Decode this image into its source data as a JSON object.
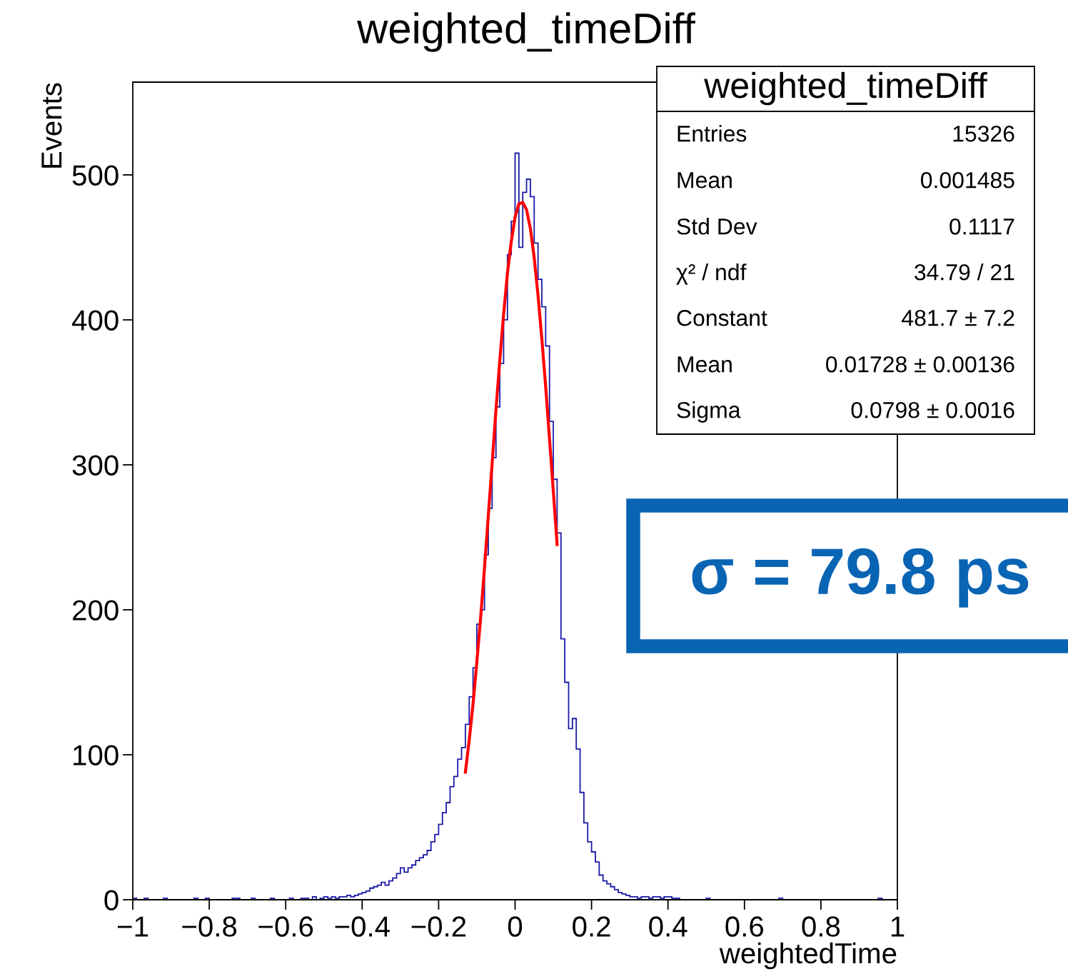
{
  "chart_data": {
    "type": "histogram",
    "title": "weighted_timeDiff",
    "xlabel": "weightedTime",
    "ylabel": "Events",
    "bins": [
      -1.0,
      -0.99,
      -0.98,
      -0.97,
      -0.96,
      -0.95,
      -0.94,
      -0.93,
      -0.92,
      -0.91,
      -0.9,
      -0.89,
      -0.88,
      -0.87,
      -0.86,
      -0.85,
      -0.84,
      -0.83,
      -0.82,
      -0.81,
      -0.8,
      -0.79,
      -0.78,
      -0.77,
      -0.76,
      -0.75,
      -0.74,
      -0.73,
      -0.72,
      -0.71,
      -0.7,
      -0.69,
      -0.68,
      -0.67,
      -0.66,
      -0.65,
      -0.64,
      -0.63,
      -0.62,
      -0.61,
      -0.6,
      -0.59,
      -0.58,
      -0.57,
      -0.56,
      -0.55,
      -0.54,
      -0.53,
      -0.52,
      -0.51,
      -0.5,
      -0.49,
      -0.48,
      -0.47,
      -0.46,
      -0.45,
      -0.44,
      -0.43,
      -0.42,
      -0.41,
      -0.4,
      -0.39,
      -0.38,
      -0.37,
      -0.36,
      -0.35,
      -0.34,
      -0.33,
      -0.32,
      -0.31,
      -0.3,
      -0.29,
      -0.28,
      -0.27,
      -0.26,
      -0.25,
      -0.24,
      -0.23,
      -0.22,
      -0.21,
      -0.2,
      -0.19,
      -0.18,
      -0.17,
      -0.16,
      -0.15,
      -0.14,
      -0.13,
      -0.12,
      -0.11,
      -0.1,
      -0.09,
      -0.08,
      -0.07,
      -0.06,
      -0.05,
      -0.04,
      -0.03,
      -0.02,
      -0.01,
      0.0,
      0.01,
      0.02,
      0.03,
      0.04,
      0.05,
      0.06,
      0.07,
      0.08,
      0.09,
      0.1,
      0.11,
      0.12,
      0.13,
      0.14,
      0.15,
      0.16,
      0.17,
      0.18,
      0.19,
      0.2,
      0.21,
      0.22,
      0.23,
      0.24,
      0.25,
      0.26,
      0.27,
      0.28,
      0.29,
      0.3,
      0.31,
      0.32,
      0.33,
      0.34,
      0.35,
      0.36,
      0.37,
      0.38,
      0.39,
      0.4,
      0.41,
      0.42,
      0.43,
      0.44,
      0.45,
      0.46,
      0.47,
      0.48,
      0.49,
      0.5,
      0.51,
      0.52,
      0.53,
      0.54,
      0.55,
      0.56,
      0.57,
      0.58,
      0.59,
      0.6,
      0.61,
      0.62,
      0.63,
      0.64,
      0.65,
      0.66,
      0.67,
      0.68,
      0.69,
      0.7,
      0.71,
      0.72,
      0.73,
      0.74,
      0.75,
      0.76,
      0.77,
      0.78,
      0.79,
      0.8,
      0.81,
      0.82,
      0.83,
      0.84,
      0.85,
      0.86,
      0.87,
      0.88,
      0.89,
      0.9,
      0.91,
      0.92,
      0.93,
      0.94,
      0.95,
      0.96,
      0.97,
      0.98,
      0.99,
      1.0
    ],
    "values": [
      1,
      0,
      0,
      1,
      0,
      0,
      0,
      0,
      1,
      0,
      0,
      0,
      0,
      0,
      0,
      0,
      1,
      0,
      0,
      1,
      0,
      0,
      0,
      0,
      0,
      0,
      1,
      1,
      0,
      0,
      0,
      1,
      0,
      0,
      0,
      0,
      1,
      0,
      0,
      0,
      0,
      1,
      0,
      0,
      1,
      1,
      0,
      2,
      0,
      1,
      2,
      1,
      2,
      1,
      2,
      2,
      3,
      2,
      3,
      4,
      5,
      6,
      8,
      9,
      10,
      12,
      10,
      13,
      15,
      18,
      22,
      19,
      22,
      24,
      27,
      29,
      31,
      34,
      40,
      45,
      52,
      60,
      67,
      78,
      85,
      97,
      105,
      121,
      140,
      160,
      190,
      200,
      238,
      270,
      305,
      340,
      370,
      400,
      445,
      468,
      515,
      450,
      488,
      497,
      485,
      453,
      428,
      409,
      382,
      330,
      290,
      253,
      180,
      150,
      118,
      125,
      104,
      74,
      53,
      40,
      33,
      26,
      17,
      13,
      11,
      9,
      7,
      5,
      4,
      3,
      2,
      2,
      1,
      2,
      2,
      1,
      2,
      2,
      1,
      2,
      2,
      1,
      1,
      0,
      0,
      0,
      0,
      0,
      0,
      0,
      1,
      0,
      0,
      0,
      0,
      0,
      0,
      0,
      0,
      0,
      0,
      0,
      0,
      0,
      0,
      0,
      0,
      0,
      0,
      1,
      0,
      0,
      0,
      0,
      0,
      0,
      0,
      0,
      0,
      0,
      0,
      0,
      0,
      0,
      0,
      0,
      0,
      0,
      0,
      0,
      0,
      0,
      0,
      0,
      0,
      1,
      0,
      0,
      0,
      0
    ],
    "color": "#1a1aa6",
    "series": [
      {
        "type": "line",
        "color": "#ff0000",
        "x": [
          -0.13,
          -0.12,
          -0.11,
          -0.1,
          -0.09,
          -0.08,
          -0.07,
          -0.06,
          -0.05,
          -0.04,
          -0.03,
          -0.02,
          -0.01,
          0.0,
          0.01,
          0.02,
          0.03,
          0.04,
          0.05,
          0.06,
          0.07,
          0.08,
          0.09,
          0.1,
          0.11
        ],
        "values": [
          88,
          110,
          135,
          164,
          195,
          229,
          265,
          301,
          338,
          372,
          404,
          432,
          454,
          471,
          480,
          481,
          476,
          463,
          443,
          417,
          387,
          354,
          318,
          282,
          245
        ]
      }
    ],
    "xlim": [
      -1,
      1
    ],
    "ylim": [
      0,
      564
    ],
    "xticks": [
      {
        "value": -1,
        "label": "−1"
      },
      {
        "value": -0.8,
        "label": "−0.8"
      },
      {
        "value": -0.6,
        "label": "−0.6"
      },
      {
        "value": -0.4,
        "label": "−0.4"
      },
      {
        "value": -0.2,
        "label": "−0.2"
      },
      0,
      0.2,
      0.4,
      0.6,
      0.8,
      1
    ],
    "yticks": [
      0,
      100,
      200,
      300,
      400,
      500
    ],
    "annotations": [
      "weighted_timeDiff",
      "Entries",
      "15326",
      "Mean",
      "0.001485",
      "Std Dev",
      "0.1117",
      "χ² / ndf",
      "34.79 / 21",
      "Constant",
      "481.7 ± 7.2",
      "Mean",
      "0.01728 ± 0.00136",
      "Sigma",
      "0.0798 ± 0.0016",
      "σ = 79.8 ps"
    ]
  }
}
